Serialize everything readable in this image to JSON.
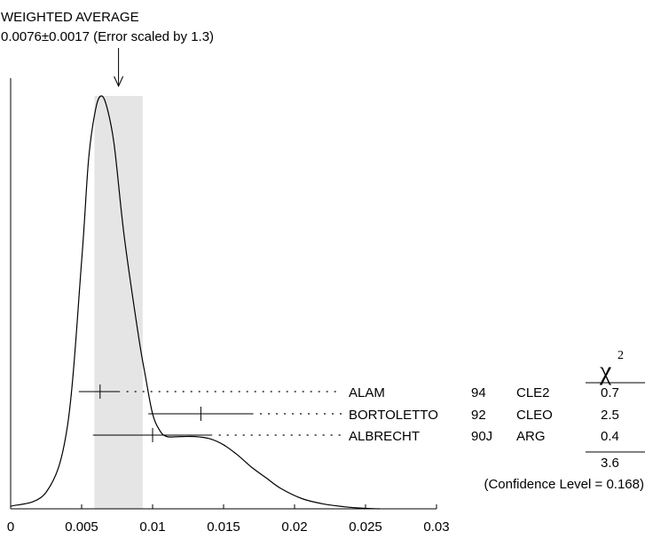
{
  "chart_data": {
    "type": "ideogram",
    "title_line1": "WEIGHTED AVERAGE",
    "title_line2": "0.0076±0.0017 (Error scaled by 1.3)",
    "weighted_average": {
      "value": 0.0076,
      "error": 0.0017,
      "scale_factor": 1.3
    },
    "band": [
      0.0059,
      0.0093
    ],
    "xlim": [
      0,
      0.03
    ],
    "x_ticks": [
      {
        "value": 0,
        "label": "0"
      },
      {
        "value": 0.005,
        "label": "0.005"
      },
      {
        "value": 0.01,
        "label": "0.01"
      },
      {
        "value": 0.015,
        "label": "0.015"
      },
      {
        "value": 0.02,
        "label": "0.02"
      },
      {
        "value": 0.025,
        "label": "0.025"
      },
      {
        "value": 0.03,
        "label": "0.03"
      }
    ],
    "chi2_header": "χ",
    "chi2_power": "2",
    "measurements": [
      {
        "author": "ALAM",
        "year": "94",
        "experiment": "CLE2",
        "value": 0.0063,
        "low": 0.0048,
        "high": 0.0077,
        "chi2": "0.7"
      },
      {
        "author": "BORTOLETTO",
        "year": "92",
        "experiment": "CLEO",
        "value": 0.0134,
        "low": 0.0097,
        "high": 0.0171,
        "chi2": "2.5"
      },
      {
        "author": "ALBRECHT",
        "year": "90J",
        "experiment": "ARG",
        "value": 0.01,
        "low": 0.0058,
        "high": 0.0142,
        "chi2": "0.4"
      }
    ],
    "chi2_total": "3.6",
    "confidence_level": "(Confidence Level = 0.168)",
    "ideogram_curve": [
      [
        0.0,
        0.006
      ],
      [
        0.0025,
        0.04
      ],
      [
        0.004,
        0.2
      ],
      [
        0.005,
        0.6
      ],
      [
        0.0055,
        0.85
      ],
      [
        0.006,
        0.97
      ],
      [
        0.0064,
        1.0
      ],
      [
        0.0068,
        0.97
      ],
      [
        0.0073,
        0.88
      ],
      [
        0.008,
        0.66
      ],
      [
        0.009,
        0.42
      ],
      [
        0.0095,
        0.32
      ],
      [
        0.01,
        0.23
      ],
      [
        0.0105,
        0.19
      ],
      [
        0.011,
        0.175
      ],
      [
        0.012,
        0.175
      ],
      [
        0.013,
        0.175
      ],
      [
        0.014,
        0.17
      ],
      [
        0.015,
        0.155
      ],
      [
        0.016,
        0.13
      ],
      [
        0.017,
        0.1
      ],
      [
        0.018,
        0.075
      ],
      [
        0.019,
        0.05
      ],
      [
        0.0205,
        0.025
      ],
      [
        0.022,
        0.012
      ],
      [
        0.0235,
        0.005
      ],
      [
        0.025,
        0.001
      ],
      [
        0.026,
        0.0
      ]
    ]
  }
}
